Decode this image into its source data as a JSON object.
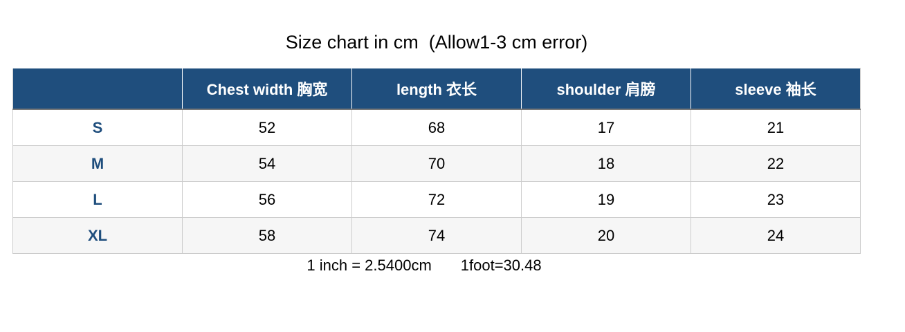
{
  "title": "Size chart in cm  (Allow1-3 cm error)",
  "colors": {
    "header_bg": "#1f4e7d",
    "size_label": "#1f4e7d",
    "alt_row": "#f6f6f6"
  },
  "table": {
    "headers": [
      "",
      "Chest width 胸宽",
      "length 衣长",
      "shoulder 肩膀",
      "sleeve 袖长"
    ],
    "rows": [
      [
        "S",
        "52",
        "68",
        "17",
        "21"
      ],
      [
        "M",
        "54",
        "70",
        "18",
        "22"
      ],
      [
        "L",
        "56",
        "72",
        "19",
        "23"
      ],
      [
        "XL",
        "58",
        "74",
        "20",
        "24"
      ]
    ]
  },
  "footer": {
    "inch": "1 inch = 2.5400cm",
    "foot": "1foot=30.48"
  }
}
